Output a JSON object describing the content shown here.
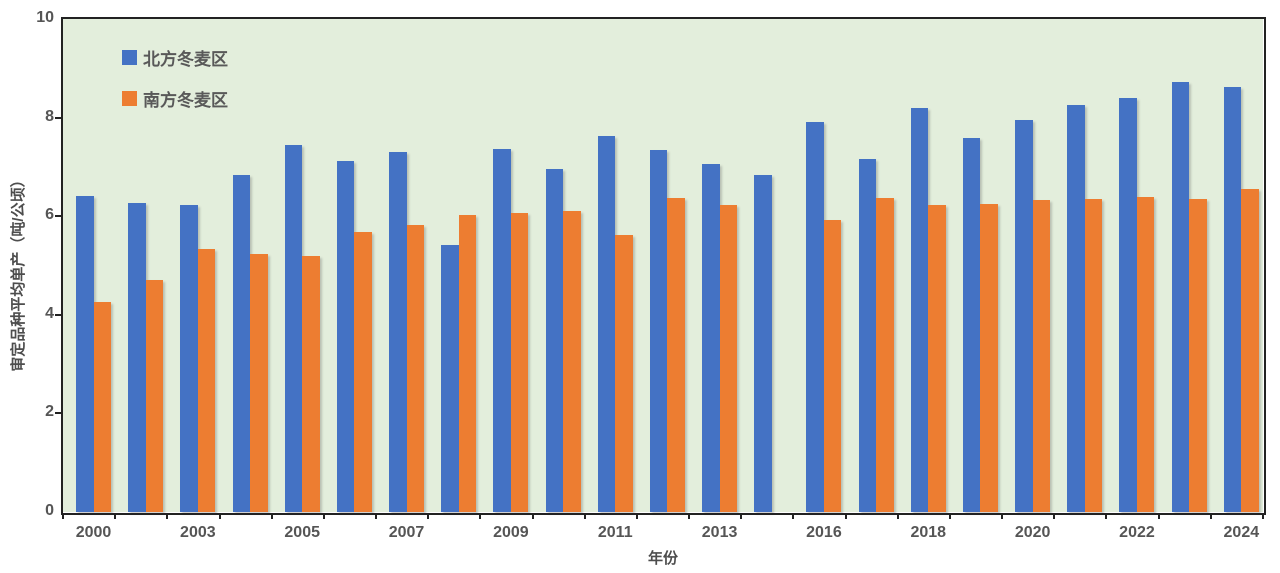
{
  "chart_data": {
    "type": "bar",
    "title": "",
    "xlabel": "年份",
    "ylabel": "审定品种平均单产（吨/公顷）",
    "ylim": [
      0,
      10
    ],
    "yticks": [
      0,
      2,
      4,
      6,
      8,
      10
    ],
    "grid": false,
    "legend_position": "top-left-inside",
    "plot_background": "#E3EEDC",
    "axis_color": "#222222",
    "tick_label_color": "#555555",
    "categories": [
      "2000",
      "",
      "2003",
      "",
      "2005",
      "",
      "2007",
      "",
      "2009",
      "",
      "2011",
      "",
      "2013",
      "",
      "2016",
      "",
      "2018",
      "",
      "2020",
      "",
      "2022",
      "",
      "2024"
    ],
    "series": [
      {
        "name": "北方冬麦区",
        "color": "#4472C4",
        "values": [
          6.42,
          6.27,
          6.23,
          6.83,
          7.44,
          7.13,
          7.31,
          5.41,
          7.37,
          6.96,
          7.62,
          7.35,
          7.06,
          6.84,
          7.91,
          7.17,
          8.2,
          7.59,
          7.96,
          8.26,
          8.4,
          8.72,
          8.62
        ]
      },
      {
        "name": "南方冬麦区",
        "color": "#ED7D31",
        "values": [
          4.25,
          4.71,
          5.33,
          5.24,
          5.2,
          5.68,
          5.82,
          6.03,
          6.07,
          6.11,
          5.61,
          6.37,
          6.22,
          null,
          5.93,
          6.36,
          6.22,
          6.25,
          6.32,
          6.34,
          6.39,
          6.34,
          6.56
        ]
      }
    ]
  }
}
